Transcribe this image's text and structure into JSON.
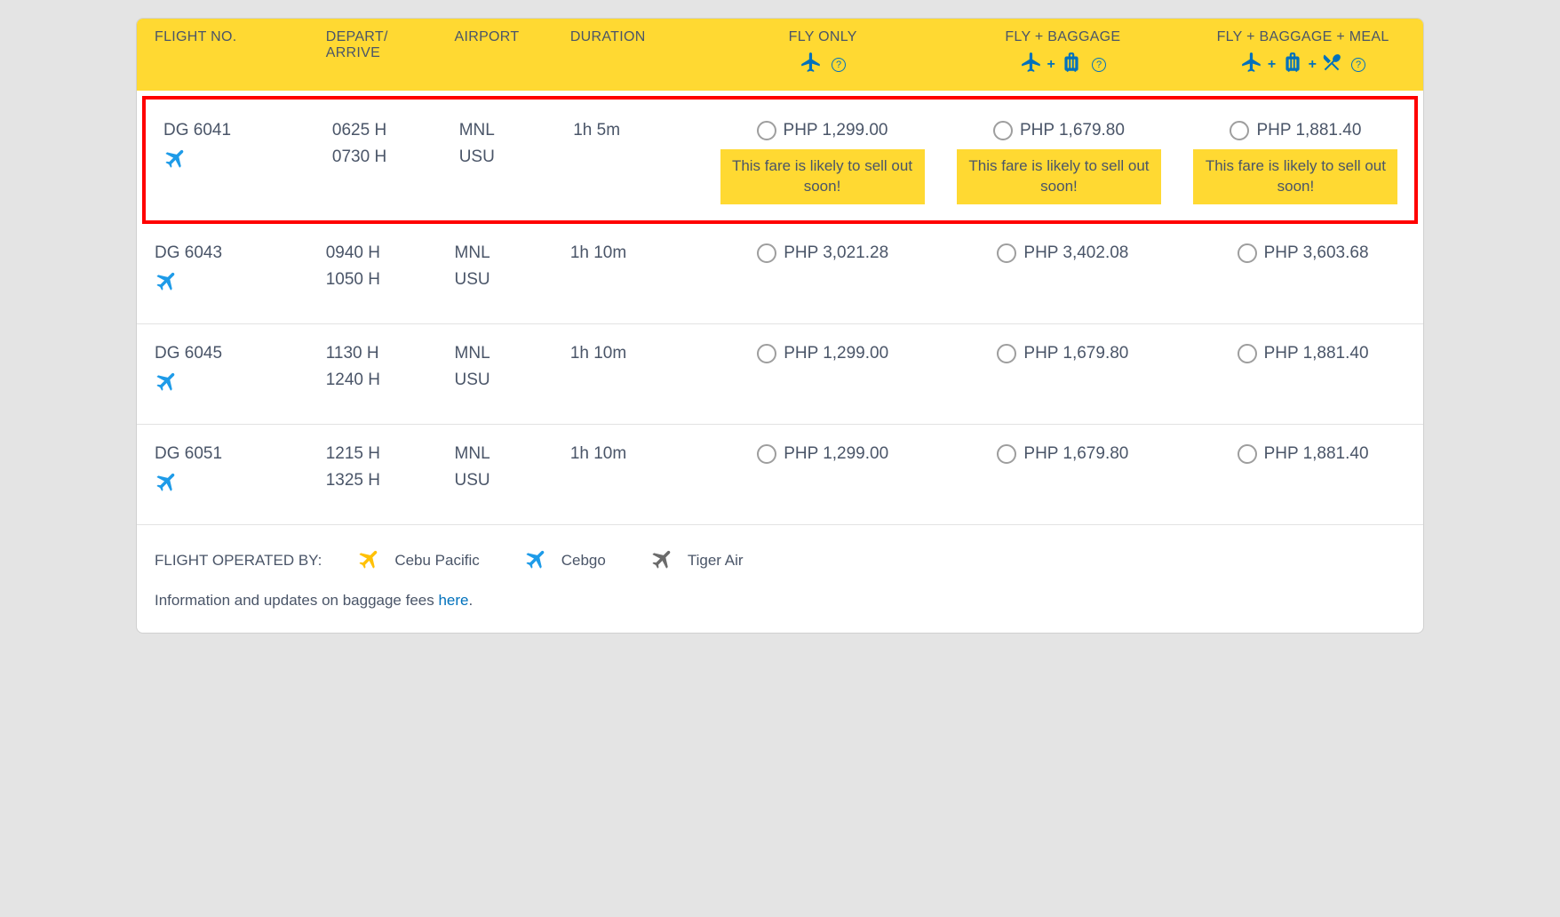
{
  "colors": {
    "header_bg": "#ffd932",
    "accent_blue": "#0071bc",
    "text": "#4a5568",
    "highlight_border": "#ff0000",
    "row_divider": "#e2e2e2",
    "page_bg": "#e4e4e4",
    "radio_border": "#9e9e9e",
    "carrier_cebu": "#ffc107",
    "carrier_cebgo": "#1e9be8",
    "carrier_tiger": "#6b6b6b"
  },
  "headers": {
    "flight_no": "FLIGHT NO.",
    "depart_arrive_l1": "DEPART/",
    "depart_arrive_l2": "ARRIVE",
    "airport": "AIRPORT",
    "duration": "DURATION",
    "fly_only": "FLY ONLY",
    "fly_baggage": "FLY + BAGGAGE",
    "fly_baggage_meal": "FLY + BAGGAGE + MEAL",
    "help_symbol": "?"
  },
  "sellout_text": "This fare is likely to sell out soon!",
  "flights": [
    {
      "number": "DG 6041",
      "carrier": "cebgo",
      "depart": "0625 H",
      "arrive": "0730 H",
      "from": "MNL",
      "to": "USU",
      "duration": "1h 5m",
      "fly_only": "PHP 1,299.00",
      "fly_baggage": "PHP 1,679.80",
      "fly_baggage_meal": "PHP 1,881.40",
      "sellout": true,
      "highlighted": true
    },
    {
      "number": "DG 6043",
      "carrier": "cebgo",
      "depart": "0940 H",
      "arrive": "1050 H",
      "from": "MNL",
      "to": "USU",
      "duration": "1h 10m",
      "fly_only": "PHP 3,021.28",
      "fly_baggage": "PHP 3,402.08",
      "fly_baggage_meal": "PHP 3,603.68",
      "sellout": false,
      "highlighted": false
    },
    {
      "number": "DG 6045",
      "carrier": "cebgo",
      "depart": "1130 H",
      "arrive": "1240 H",
      "from": "MNL",
      "to": "USU",
      "duration": "1h 10m",
      "fly_only": "PHP 1,299.00",
      "fly_baggage": "PHP 1,679.80",
      "fly_baggage_meal": "PHP 1,881.40",
      "sellout": false,
      "highlighted": false
    },
    {
      "number": "DG 6051",
      "carrier": "cebgo",
      "depart": "1215 H",
      "arrive": "1325 H",
      "from": "MNL",
      "to": "USU",
      "duration": "1h 10m",
      "fly_only": "PHP 1,299.00",
      "fly_baggage": "PHP 1,679.80",
      "fly_baggage_meal": "PHP 1,881.40",
      "sellout": false,
      "highlighted": false
    }
  ],
  "footer": {
    "operated_by_label": "FLIGHT OPERATED BY:",
    "carriers": [
      {
        "key": "cebu",
        "name": "Cebu Pacific",
        "color": "#ffc107"
      },
      {
        "key": "cebgo",
        "name": "Cebgo",
        "color": "#1e9be8"
      },
      {
        "key": "tiger",
        "name": "Tiger Air",
        "color": "#6b6b6b"
      }
    ],
    "baggage_info_prefix": "Information and updates on baggage fees ",
    "baggage_info_link": "here",
    "baggage_info_suffix": "."
  }
}
